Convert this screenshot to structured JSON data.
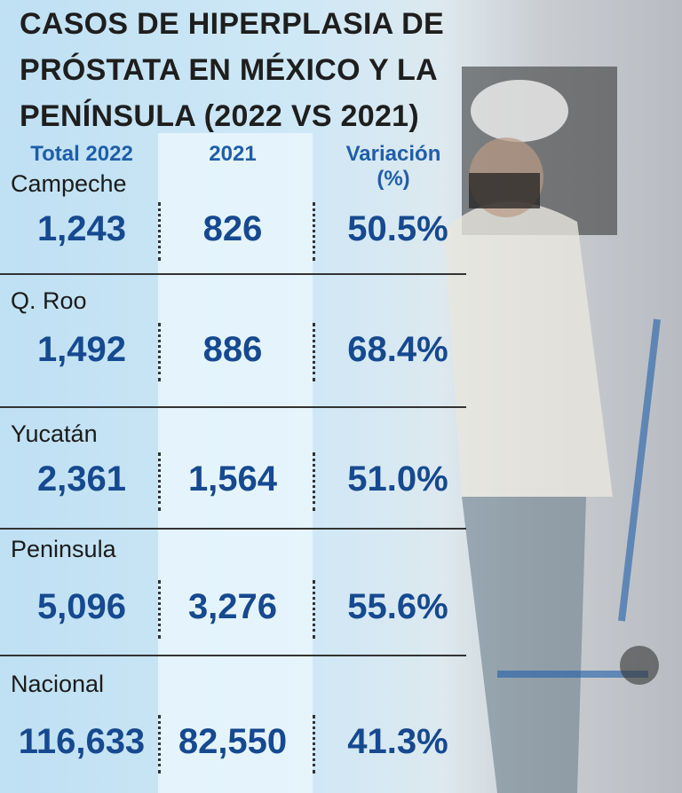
{
  "header": {
    "title_lines": [
      "CASOS DE HIPERPLASIA DE",
      "PRÓSTATA EN MÉXICO Y LA",
      "PENÍNSULA (2022 VS 2021)"
    ]
  },
  "table": {
    "columns": [
      "Total 2022",
      "2021",
      "Variación (%)"
    ],
    "rows": [
      [
        "Campeche",
        "1,243",
        "826",
        "50.5%"
      ],
      [
        "Q. Roo",
        "1,492",
        "886",
        "68.4%"
      ],
      [
        "Yucatán",
        "2,361",
        "1,564",
        "51.0%"
      ],
      [
        "Peninsula",
        "5,096",
        "3,276",
        "55.6%"
      ],
      [
        "Nacional",
        "116,633",
        "82,550",
        "41.3%"
      ]
    ]
  }
}
